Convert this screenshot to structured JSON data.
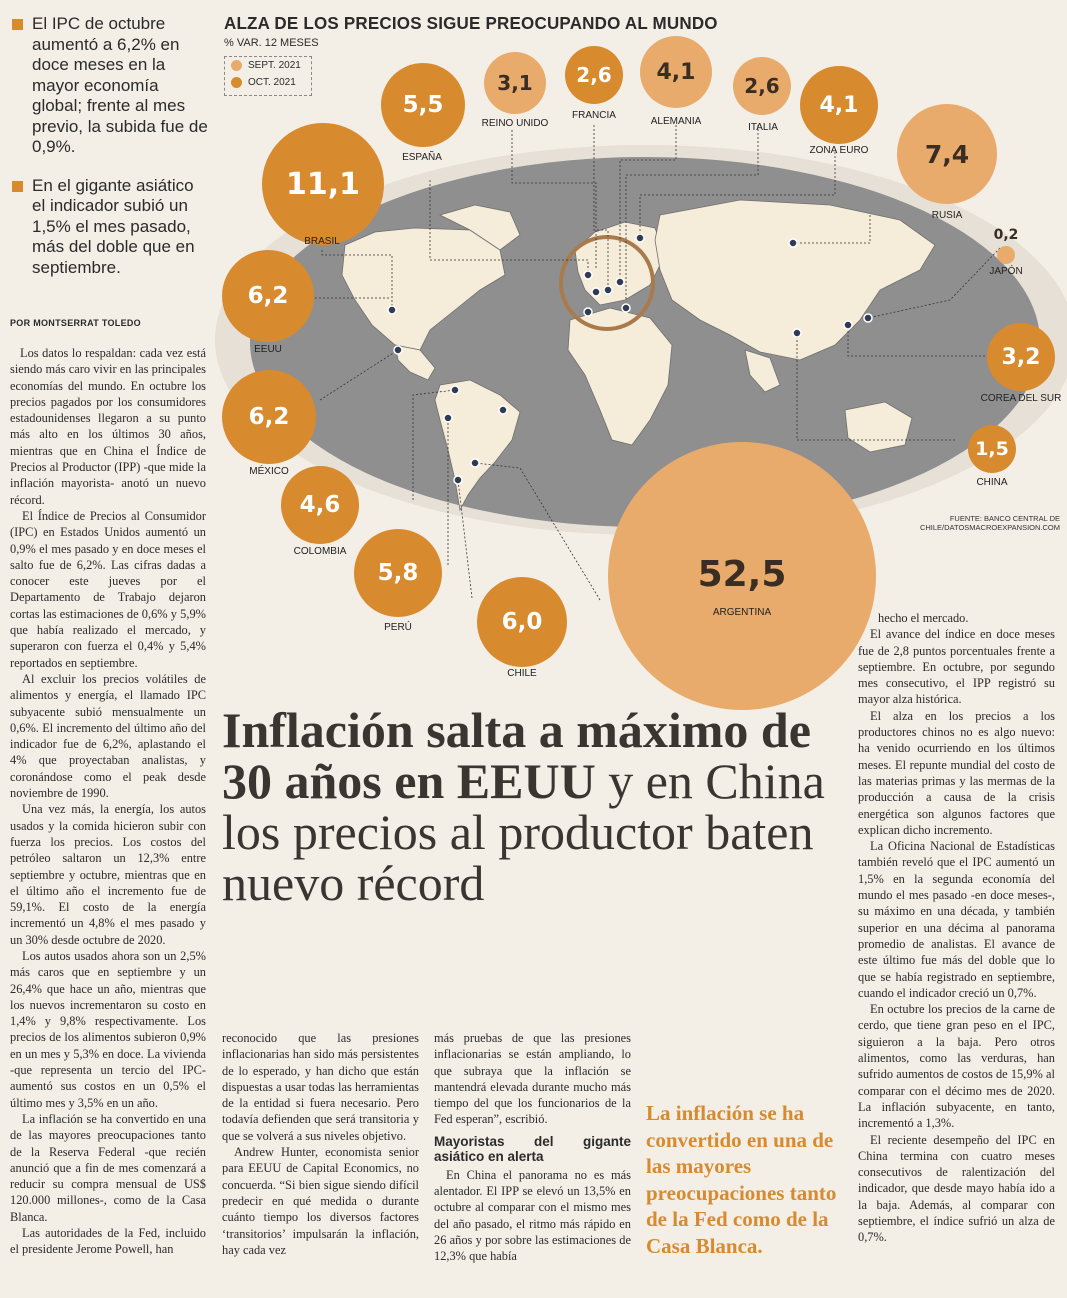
{
  "bullets": [
    "El IPC de octubre aumentó a 6,2% en doce meses en la mayor economía global; frente al mes previo, la subida fue de 0,9%.",
    "En el gigante asiático el indicador subió un 1,5% el mes pasado, más del doble que en septiembre."
  ],
  "byline": "POR MONTSERRAT TOLEDO",
  "infographic": {
    "title": "ALZA DE LOS PRECIOS SIGUE PREOCUPANDO AL MUNDO",
    "subtitle": "% VAR. 12 MESES",
    "legend": [
      {
        "label": "SEPT. 2021",
        "color": "#e8ab6c"
      },
      {
        "label": "OCT. 2021",
        "color": "#d88a2e"
      }
    ],
    "source": "FUENTE: BANCO CENTRAL DE CHILE/DATOSMACROEXPANSION.COM",
    "bubbles": [
      {
        "country": "BRASIL",
        "value": "11,1",
        "series": "oct"
      },
      {
        "country": "ESPAÑA",
        "value": "5,5",
        "series": "oct"
      },
      {
        "country": "REINO UNIDO",
        "value": "3,1",
        "series": "sept"
      },
      {
        "country": "FRANCIA",
        "value": "2,6",
        "series": "oct"
      },
      {
        "country": "ALEMANIA",
        "value": "4,1",
        "series": "sept"
      },
      {
        "country": "ITALIA",
        "value": "2,6",
        "series": "sept"
      },
      {
        "country": "ZONA EURO",
        "value": "4,1",
        "series": "oct"
      },
      {
        "country": "RUSIA",
        "value": "7,4",
        "series": "sept"
      },
      {
        "country": "JAPÓN",
        "value": "0,2",
        "series": "sept"
      },
      {
        "country": "EEUU",
        "value": "6,2",
        "series": "oct"
      },
      {
        "country": "MÉXICO",
        "value": "6,2",
        "series": "oct"
      },
      {
        "country": "COREA DEL SUR",
        "value": "3,2",
        "series": "oct"
      },
      {
        "country": "CHINA",
        "value": "1,5",
        "series": "oct"
      },
      {
        "country": "COLOMBIA",
        "value": "4,6",
        "series": "oct"
      },
      {
        "country": "PERÚ",
        "value": "5,8",
        "series": "oct"
      },
      {
        "country": "CHILE",
        "value": "6,0",
        "series": "oct"
      },
      {
        "country": "ARGENTINA",
        "value": "52,5",
        "series": "sept"
      }
    ]
  },
  "headline": {
    "bold": "Inflación salta a máximo de 30 años en EEUU",
    "light1": " y en China",
    "light2": "los precios al productor baten nuevo récord"
  },
  "pullquote": "La inflación se ha convertido en una de las mayores preocupaciones tanto de la Fed como de la Casa Blanca.",
  "col1": [
    "Los datos lo respaldan: cada vez está siendo más caro vivir en las principales economías del mundo. En octubre los precios pagados por los consumidores estadounidenses llegaron a su punto más alto en los últimos 30 años, mientras que en China el Índice de Precios al Productor (IPP) -que mide la inflación mayorista- anotó un nuevo récord.",
    "El Índice de Precios al Consumidor (IPC) en Estados Unidos aumentó un 0,9% el mes pasado y en doce meses el salto fue de 6,2%. Las cifras dadas a conocer este jueves por el Departamento de Trabajo dejaron cortas las estimaciones de 0,6% y 5,9% que había realizado el mercado, y superaron con fuerza el 0,4% y 5,4% reportados en septiembre.",
    "Al excluir los precios volátiles de alimentos y energía, el llamado IPC subyacente subió mensualmente un 0,6%. El incremento del último año del indicador fue de 6,2%, aplastando el 4% que proyectaban analistas, y coronándose como el peak desde noviembre de 1990.",
    "Una vez más, la energía, los autos usados y la comida hicieron subir con fuerza los precios. Los costos del petróleo saltaron un 12,3% entre septiembre y octubre, mientras que en el último año el incremento fue de 59,1%. El costo de la energía incrementó un 4,8% el mes pasado y un 30% desde octubre de 2020.",
    "Los autos usados ahora son un 2,5% más caros que en septiembre y un 26,4% que hace un año, mientras que los nuevos incrementaron su costo en 1,4% y 9,8% respectivamente. Los precios de los alimentos subieron 0,9% en un mes y 5,3% en doce. La vivienda -que representa un tercio del IPC- aumentó sus costos en un 0,5% el último mes y 3,5% en un año.",
    "La inflación se ha convertido en una de las mayores preocupaciones tanto de la Reserva Federal -que recién anunció que a fin de mes comenzará a reducir su compra mensual de US$ 120.000 millones-, como de la Casa Blanca.",
    "Las autoridades de la Fed, incluido el presidente Jerome Powell, han"
  ],
  "col2": [
    "reconocido que las presiones inflacionarias han sido más persistentes de lo esperado, y han dicho que están dispuestas a usar todas las herramientas de la entidad si fuera necesario. Pero todavía defienden que será transitoria y que se volverá a sus niveles objetivo.",
    "Andrew Hunter, economista senior para EEUU de Capital Economics, no concuerda. “Si bien sigue siendo difícil predecir en qué medida o durante cuánto tiempo los diversos factores ‘transitorios’ impulsarán la inflación, hay cada vez"
  ],
  "col3": {
    "p1": "más pruebas de que las presiones inflacionarias se están ampliando, lo que subraya que la inflación se mantendrá elevada durante mucho más tiempo del que los funcionarios de la Fed esperan”, escribió.",
    "subhead": "Mayoristas del gigante asiático en alerta",
    "p2": "En China el panorama no es más alentador. El IPP se elevó un 13,5% en octubre al comparar con el mismo mes del año pasado, el ritmo más rápido en 26 años y por sobre las estimaciones de 12,3% que había"
  },
  "col4": [
    "hecho el mercado.",
    "El avance del índice en doce meses fue de 2,8 puntos porcentuales frente a septiembre. En octubre, por segundo mes consecutivo, el IPP registró su mayor alza histórica.",
    "El alza en los precios a los productores chinos no es algo nuevo: ha venido ocurriendo en los últimos meses. El repunte mundial del costo de las materias primas y las mermas de la producción a causa de la crisis energética son algunos factores que explican dicho incremento.",
    "La Oficina Nacional de Estadísticas también reveló que el IPC aumentó un 1,5% en la segunda economía del mundo el mes pasado -en doce meses-, su máximo en una década, y también superior en una décima al panorama promedio de analistas. El avance de este último fue más del doble que lo que se había registrado en septiembre, cuando el indicador creció un 0,7%.",
    "En octubre los precios de la carne de cerdo, que tiene gran peso en el IPC, siguieron a la baja. Pero otros alimentos, como las verduras, han sufrido aumentos de costos de 15,9% al comparar con el décimo mes de 2020. La inflación subyacente, en tanto, incrementó a 1,3%.",
    "El reciente desempeño del IPC en China termina con cuatro meses consecutivos de ralentización del indicador, que desde mayo había ido a la baja. Además, al comparar con septiembre, el índice sufrió un alza de 0,7%."
  ]
}
